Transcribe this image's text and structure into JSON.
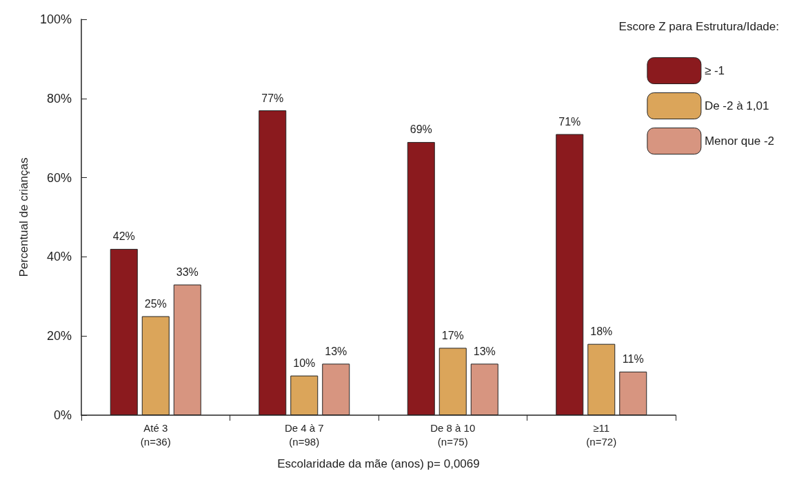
{
  "chart_data": {
    "type": "bar",
    "xlabel": "Escolaridade da mãe (anos) p= 0,0069",
    "ylabel": "Percentual de crianças",
    "legend_title": "Escore Z para Estrutura/Idade:",
    "categories": [
      "Até 3\n(n=36)",
      "De 4 à 7\n(n=98)",
      "De 8 à 10\n(n=75)",
      "≥11\n(n=72)"
    ],
    "series": [
      {
        "name": "≥ -1",
        "color": "#8b1a1e",
        "values": [
          42,
          77,
          69,
          71
        ],
        "value_labels": [
          "42%",
          "77%",
          "69%",
          "71%"
        ]
      },
      {
        "name": "De -2 à 1,01",
        "color": "#dba55a",
        "values": [
          25,
          10,
          17,
          18
        ],
        "value_labels": [
          "25%",
          "10%",
          "17%",
          "18%"
        ]
      },
      {
        "name": "Menor que -2",
        "color": "#d79580",
        "values": [
          33,
          13,
          13,
          11
        ],
        "value_labels": [
          "33%",
          "13%",
          "13%",
          "11%"
        ]
      }
    ],
    "ylim": [
      0,
      100
    ],
    "yticks": [
      {
        "value": 0,
        "label": "0%"
      },
      {
        "value": 20,
        "label": "20%"
      },
      {
        "value": 40,
        "label": "40%"
      },
      {
        "value": 60,
        "label": "60%"
      },
      {
        "value": 80,
        "label": "80%"
      },
      {
        "value": 100,
        "label": "100%"
      }
    ],
    "grid": false,
    "legend": "top right"
  }
}
